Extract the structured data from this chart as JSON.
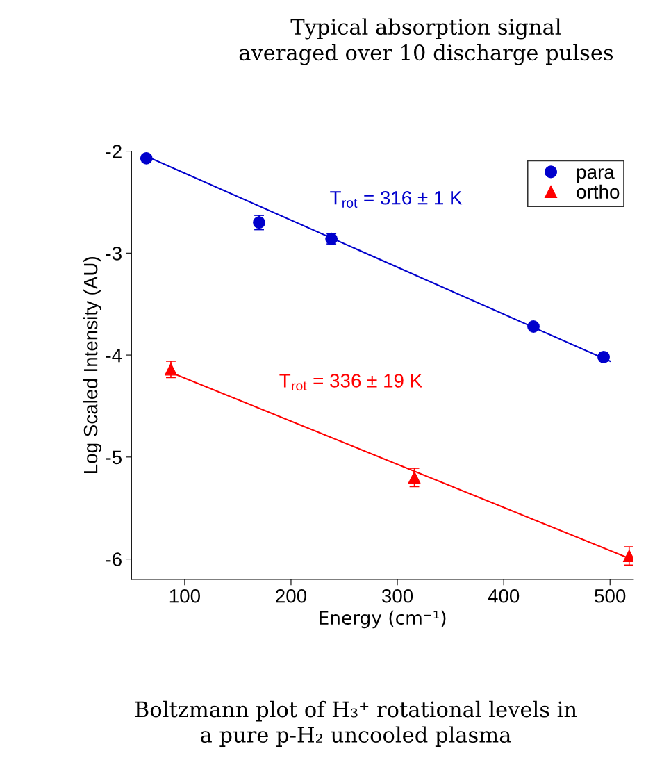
{
  "chart_data": {
    "type": "scatter",
    "xlabel": "Energy (cm⁻¹)",
    "ylabel": "Log Scaled Intensity (AU)",
    "xlim": [
      50,
      522
    ],
    "ylim": [
      -6.2,
      -2.0
    ],
    "xticks": [
      100,
      200,
      300,
      400,
      500
    ],
    "yticks": [
      -2,
      -3,
      -4,
      -5,
      -6
    ],
    "grid": false,
    "legend": "top right",
    "series": [
      {
        "name": "para",
        "color": "#0000cc",
        "marker": "circle",
        "x": [
          64,
          170,
          238,
          428,
          494
        ],
        "values": [
          -2.07,
          -2.7,
          -2.86,
          -3.72,
          -4.02
        ],
        "errors": [
          0.04,
          0.07,
          0.05,
          0.04,
          0.04
        ]
      },
      {
        "name": "ortho",
        "color": "#ff0000",
        "marker": "triangle",
        "x": [
          87,
          316,
          518
        ],
        "values": [
          -4.14,
          -5.2,
          -5.97
        ],
        "errors": [
          0.08,
          0.09,
          0.09
        ]
      },
      {
        "type": "line",
        "color": "#0000cc",
        "x": [
          64,
          500
        ],
        "values": [
          -2.05,
          -4.06
        ]
      },
      {
        "type": "line",
        "color": "#ff0000",
        "x": [
          87,
          522
        ],
        "values": [
          -4.17,
          -6.01
        ]
      }
    ],
    "annotations": [
      "T$_{rot}$ = 316 ± 1 K",
      "T$_{rot}$ = 336 ± 19 K",
      "Typical absorption signal\naveraged over 10 discharge pulses",
      "Boltzmann plot of H₃⁺ rotational levels in\na pure p-H₂ uncooled plasma"
    ]
  }
}
